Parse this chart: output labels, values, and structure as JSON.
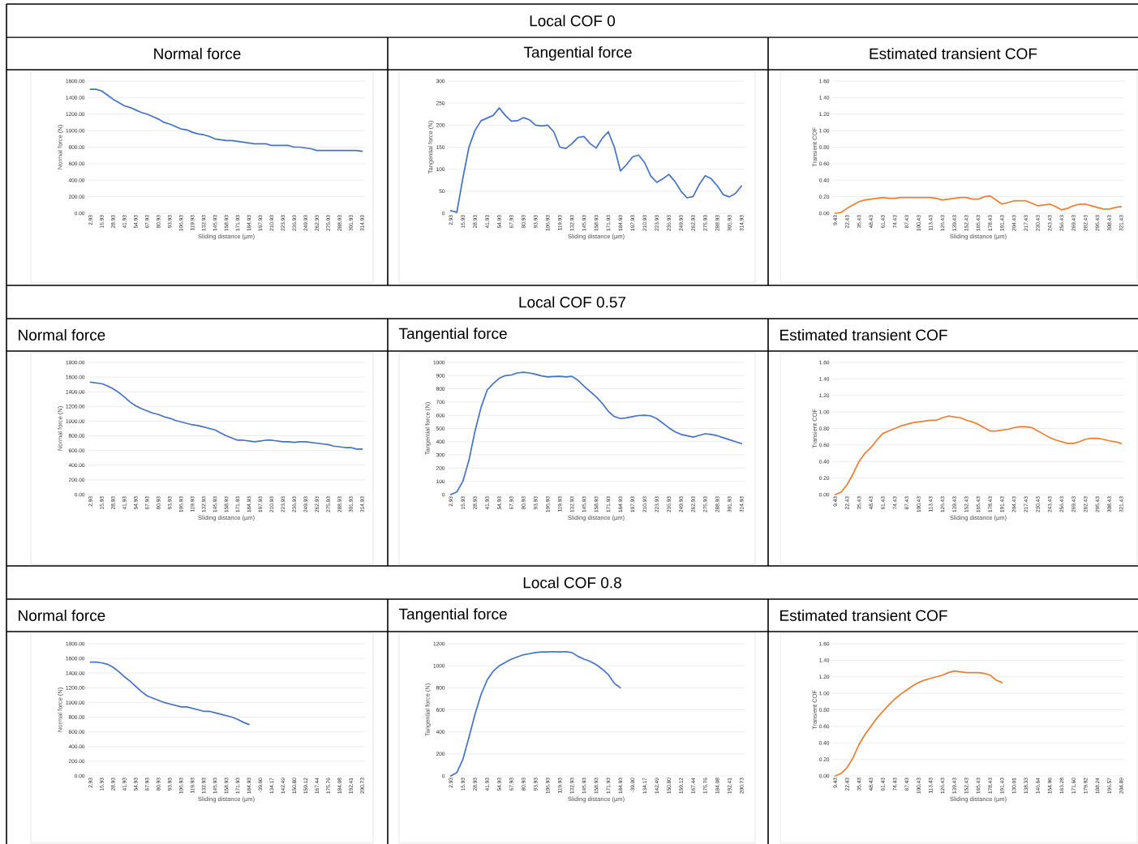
{
  "chart_data": [
    {
      "type": "line",
      "title": "Normal force",
      "annotations": [
        "Local COF 0"
      ],
      "xlabel": "Sliding distance (µm)",
      "ylabel": "Normal force (N)",
      "color": "#4472c4",
      "grid": "y",
      "categories": [
        "2.93",
        null,
        "15.93",
        null,
        "28.93",
        null,
        "41.93",
        null,
        "54.93",
        null,
        "67.93",
        null,
        "80.93",
        null,
        "93.93",
        null,
        "106.93",
        null,
        "119.93",
        null,
        "132.93",
        null,
        "145.93",
        null,
        "158.93",
        null,
        "171.93",
        null,
        "184.93",
        null,
        "197.93",
        null,
        "210.93",
        null,
        "223.93",
        null,
        "236.93",
        null,
        "249.93",
        null,
        "262.93",
        null,
        "275.93",
        null,
        "288.93",
        null,
        "301.93",
        null,
        "314.93"
      ],
      "values": [
        1500,
        1500,
        1480,
        1430,
        1380,
        1340,
        1300,
        1280,
        1250,
        1220,
        1200,
        1170,
        1140,
        1100,
        1080,
        1050,
        1020,
        1010,
        980,
        960,
        950,
        930,
        900,
        890,
        880,
        880,
        870,
        860,
        850,
        840,
        840,
        840,
        820,
        820,
        820,
        820,
        800,
        800,
        790,
        780,
        760,
        760,
        760,
        760,
        760,
        760,
        760,
        760,
        750
      ],
      "ylim": [
        0,
        1600
      ],
      "yticks": [
        {
          "value": 0,
          "label": "0.00"
        },
        {
          "value": 200,
          "label": "200.00"
        },
        {
          "value": 400,
          "label": "400.00"
        },
        {
          "value": 600,
          "label": "600.00"
        },
        {
          "value": 800,
          "label": "800.00"
        },
        {
          "value": 1000,
          "label": "1000.00"
        },
        {
          "value": 1200,
          "label": "1200.00"
        },
        {
          "value": 1400,
          "label": "1400.00"
        },
        {
          "value": 1600,
          "label": "1600.00"
        }
      ]
    },
    {
      "type": "line",
      "title": "Tangential force",
      "xlabel": "Sliding distance (µm)",
      "ylabel": "Tangential force (N)",
      "color": "#4472c4",
      "grid": "y",
      "categories": [
        "2.93",
        null,
        "15.93",
        null,
        "28.93",
        null,
        "41.93",
        null,
        "54.93",
        null,
        "67.93",
        null,
        "80.93",
        null,
        "93.93",
        null,
        "106.93",
        null,
        "119.93",
        null,
        "132.93",
        null,
        "145.93",
        null,
        "158.93",
        null,
        "171.93",
        null,
        "184.93",
        null,
        "197.93",
        null,
        "210.93",
        null,
        "223.93",
        null,
        "236.93",
        null,
        "249.93",
        null,
        "262.93",
        null,
        "275.93",
        null,
        "288.93",
        null,
        "301.93",
        null,
        "314.93"
      ],
      "values": [
        6,
        2,
        80,
        150,
        188,
        210,
        216,
        222,
        239,
        222,
        209,
        210,
        217,
        212,
        200,
        198,
        200,
        185,
        150,
        147,
        158,
        172,
        174,
        158,
        148,
        170,
        185,
        150,
        96,
        110,
        128,
        132,
        115,
        85,
        70,
        78,
        88,
        72,
        50,
        35,
        38,
        65,
        85,
        78,
        62,
        42,
        37,
        45,
        62
      ],
      "ylim": [
        0,
        300
      ],
      "yticks": [
        0,
        50,
        100,
        150,
        200,
        250,
        300
      ]
    },
    {
      "type": "line",
      "title": "Estimated transient COF",
      "xlabel": "Sliding distance (µm)",
      "ylabel": "Transient COF",
      "color": "#ed7d31",
      "grid": "y",
      "categories": [
        "9.43",
        null,
        "22.43",
        null,
        "35.43",
        null,
        "48.43",
        null,
        "61.43",
        null,
        "74.43",
        null,
        "87.43",
        null,
        "100.43",
        null,
        "113.43",
        null,
        "126.43",
        null,
        "139.43",
        null,
        "152.43",
        null,
        "165.43",
        null,
        "178.43",
        null,
        "191.43",
        null,
        "204.43",
        null,
        "217.43",
        null,
        "230.43",
        null,
        "243.43",
        null,
        "256.43",
        null,
        "269.43",
        null,
        "282.43",
        null,
        "295.43",
        null,
        "308.43",
        null,
        "321.43"
      ],
      "values": [
        0,
        0.01,
        0.06,
        0.1,
        0.14,
        0.16,
        0.17,
        0.18,
        0.19,
        0.18,
        0.18,
        0.19,
        0.19,
        0.19,
        0.19,
        0.19,
        0.19,
        0.18,
        0.16,
        0.17,
        0.18,
        0.19,
        0.19,
        0.17,
        0.17,
        0.2,
        0.21,
        0.16,
        0.11,
        0.13,
        0.15,
        0.15,
        0.15,
        0.12,
        0.09,
        0.1,
        0.11,
        0.08,
        0.04,
        0.06,
        0.09,
        0.11,
        0.11,
        0.09,
        0.07,
        0.05,
        0.05,
        0.07,
        0.08
      ],
      "ylim": [
        0,
        1.6
      ],
      "yticks": [
        {
          "value": 0,
          "label": "0.00"
        },
        {
          "value": 0.2,
          "label": "0.20"
        },
        {
          "value": 0.4,
          "label": "0.40"
        },
        {
          "value": 0.6,
          "label": "0.60"
        },
        {
          "value": 0.8,
          "label": "0.80"
        },
        {
          "value": 1.0,
          "label": "1.00"
        },
        {
          "value": 1.2,
          "label": "1.20"
        },
        {
          "value": 1.4,
          "label": "1.40"
        },
        {
          "value": 1.6,
          "label": "1.60"
        }
      ]
    },
    {
      "type": "line",
      "title": "Normal force",
      "annotations": [
        "Local COF 0.57"
      ],
      "xlabel": "Sliding distance (µm)",
      "ylabel": "Normal force (N)",
      "color": "#4472c4",
      "grid": "y",
      "categories": [
        "2.93",
        null,
        "15.93",
        null,
        "28.93",
        null,
        "41.93",
        null,
        "54.93",
        null,
        "67.93",
        null,
        "80.93",
        null,
        "93.93",
        null,
        "106.93",
        null,
        "119.93",
        null,
        "132.93",
        null,
        "145.93",
        null,
        "158.93",
        null,
        "171.93",
        null,
        "184.93",
        null,
        "197.93",
        null,
        "210.93",
        null,
        "223.93",
        null,
        "236.93",
        null,
        "249.93",
        null,
        "262.93",
        null,
        "275.93",
        null,
        "288.93",
        null,
        "301.93",
        null,
        "314.93"
      ],
      "values": [
        1530,
        1520,
        1510,
        1480,
        1440,
        1390,
        1330,
        1260,
        1210,
        1170,
        1140,
        1110,
        1090,
        1060,
        1040,
        1010,
        990,
        970,
        950,
        940,
        920,
        900,
        880,
        840,
        800,
        770,
        740,
        740,
        730,
        720,
        730,
        740,
        740,
        730,
        720,
        720,
        710,
        720,
        720,
        710,
        700,
        690,
        680,
        660,
        650,
        640,
        640,
        620,
        620
      ],
      "ylim": [
        0,
        1800
      ],
      "yticks": [
        {
          "value": 0,
          "label": "0.00"
        },
        {
          "value": 200,
          "label": "200.00"
        },
        {
          "value": 400,
          "label": "400.00"
        },
        {
          "value": 600,
          "label": "600.00"
        },
        {
          "value": 800,
          "label": "800.00"
        },
        {
          "value": 1000,
          "label": "1000.00"
        },
        {
          "value": 1200,
          "label": "1200.00"
        },
        {
          "value": 1400,
          "label": "1400.00"
        },
        {
          "value": 1600,
          "label": "1600.00"
        },
        {
          "value": 1800,
          "label": "1800.00"
        }
      ]
    },
    {
      "type": "line",
      "title": "Tangential force",
      "xlabel": "Sliding distance (µm)",
      "ylabel": "Tangential force (N)",
      "color": "#4472c4",
      "grid": "y",
      "categories": [
        "2.93",
        null,
        "15.93",
        null,
        "28.93",
        null,
        "41.93",
        null,
        "54.93",
        null,
        "67.93",
        null,
        "80.93",
        null,
        "93.93",
        null,
        "106.93",
        null,
        "119.93",
        null,
        "132.93",
        null,
        "145.93",
        null,
        "158.93",
        null,
        "171.93",
        null,
        "184.93",
        null,
        "197.93",
        null,
        "210.93",
        null,
        "223.93",
        null,
        "236.93",
        null,
        "249.93",
        null,
        "262.93",
        null,
        "275.93",
        null,
        "288.93",
        null,
        "301.93",
        null,
        "314.93"
      ],
      "values": [
        0,
        20,
        100,
        260,
        480,
        660,
        790,
        840,
        880,
        900,
        905,
        920,
        925,
        920,
        910,
        898,
        890,
        893,
        895,
        890,
        895,
        865,
        820,
        780,
        740,
        690,
        630,
        590,
        575,
        580,
        590,
        598,
        600,
        595,
        575,
        540,
        505,
        475,
        455,
        445,
        435,
        448,
        460,
        455,
        445,
        430,
        415,
        400,
        385
      ],
      "ylim": [
        0,
        1000
      ],
      "yticks": [
        0,
        100,
        200,
        300,
        400,
        500,
        600,
        700,
        800,
        900,
        1000
      ]
    },
    {
      "type": "line",
      "title": "Estimated transient COF",
      "xlabel": "Sliding distance (µm)",
      "ylabel": "Transient COF",
      "color": "#ed7d31",
      "grid": "y",
      "categories": [
        "9.43",
        null,
        "22.43",
        null,
        "35.43",
        null,
        "48.43",
        null,
        "61.43",
        null,
        "74.43",
        null,
        "87.43",
        null,
        "100.43",
        null,
        "113.43",
        null,
        "126.43",
        null,
        "139.43",
        null,
        "152.43",
        null,
        "165.43",
        null,
        "178.43",
        null,
        "191.43",
        null,
        "204.43",
        null,
        "217.43",
        null,
        "230.43",
        null,
        "243.43",
        null,
        "256.43",
        null,
        "269.43",
        null,
        "282.43",
        null,
        "295.43",
        null,
        "308.43",
        null,
        "321.43"
      ],
      "values": [
        0,
        0.03,
        0.12,
        0.25,
        0.4,
        0.5,
        0.57,
        0.66,
        0.74,
        0.77,
        0.8,
        0.83,
        0.85,
        0.87,
        0.88,
        0.89,
        0.9,
        0.9,
        0.93,
        0.95,
        0.94,
        0.93,
        0.9,
        0.88,
        0.85,
        0.81,
        0.77,
        0.77,
        0.78,
        0.79,
        0.81,
        0.82,
        0.82,
        0.81,
        0.77,
        0.73,
        0.69,
        0.66,
        0.64,
        0.62,
        0.62,
        0.64,
        0.67,
        0.68,
        0.68,
        0.67,
        0.65,
        0.64,
        0.62
      ],
      "ylim": [
        0,
        1.6
      ],
      "yticks": [
        {
          "value": 0,
          "label": "0.00"
        },
        {
          "value": 0.2,
          "label": "0.20"
        },
        {
          "value": 0.4,
          "label": "0.40"
        },
        {
          "value": 0.6,
          "label": "0.60"
        },
        {
          "value": 0.8,
          "label": "0.80"
        },
        {
          "value": 1.0,
          "label": "1.00"
        },
        {
          "value": 1.2,
          "label": "1.20"
        },
        {
          "value": 1.4,
          "label": "1.40"
        },
        {
          "value": 1.6,
          "label": "1.60"
        }
      ]
    },
    {
      "type": "line",
      "title": "Normal force",
      "annotations": [
        "Local COF 0.8"
      ],
      "xlabel": "Sliding distance (µm)",
      "ylabel": "Normal force (N)",
      "color": "#4472c4",
      "grid": "y",
      "categories": [
        "2.93",
        null,
        "15.93",
        null,
        "28.93",
        null,
        "41.93",
        null,
        "54.93",
        null,
        "67.93",
        null,
        "80.93",
        null,
        "93.93",
        null,
        "106.93",
        null,
        "119.93",
        null,
        "132.93",
        null,
        "145.93",
        null,
        "158.93",
        null,
        "171.93",
        null,
        "184.93",
        null,
        "-39.00",
        null,
        "134.17",
        null,
        "142.49",
        null,
        "150.80",
        null,
        "159.12",
        null,
        "167.44",
        null,
        "175.76",
        null,
        "184.08",
        null,
        "192.41",
        null,
        "200.73"
      ],
      "values": [
        1550,
        1550,
        1540,
        1520,
        1480,
        1420,
        1350,
        1290,
        1220,
        1150,
        1090,
        1060,
        1030,
        1000,
        980,
        960,
        940,
        940,
        920,
        900,
        880,
        880,
        860,
        840,
        820,
        800,
        770,
        730,
        700,
        null,
        null,
        null,
        null,
        null,
        null,
        null,
        null,
        null,
        null,
        null,
        null,
        null,
        null,
        null,
        null,
        null,
        null,
        null,
        null
      ],
      "ylim": [
        0,
        1800
      ],
      "yticks": [
        {
          "value": 0,
          "label": "0.00"
        },
        {
          "value": 200,
          "label": "200.00"
        },
        {
          "value": 400,
          "label": "400.00"
        },
        {
          "value": 600,
          "label": "600.00"
        },
        {
          "value": 800,
          "label": "800.00"
        },
        {
          "value": 1000,
          "label": "1000.00"
        },
        {
          "value": 1200,
          "label": "1200.00"
        },
        {
          "value": 1400,
          "label": "1400.00"
        },
        {
          "value": 1600,
          "label": "1600.00"
        },
        {
          "value": 1800,
          "label": "1800.00"
        }
      ]
    },
    {
      "type": "line",
      "title": "Tangential force",
      "xlabel": "Sliding distance (µm)",
      "ylabel": "Tangential force (N)",
      "color": "#4472c4",
      "grid": "y",
      "categories": [
        "2.93",
        null,
        "15.93",
        null,
        "28.93",
        null,
        "41.93",
        null,
        "54.93",
        null,
        "67.93",
        null,
        "80.93",
        null,
        "93.93",
        null,
        "106.93",
        null,
        "119.93",
        null,
        "132.93",
        null,
        "145.93",
        null,
        "158.93",
        null,
        "171.93",
        null,
        "184.93",
        null,
        "-39.00",
        null,
        "134.17",
        null,
        "142.49",
        null,
        "150.80",
        null,
        "159.12",
        null,
        "167.44",
        null,
        "175.76",
        null,
        "184.08",
        null,
        "192.41",
        null,
        "200.73"
      ],
      "values": [
        0,
        30,
        150,
        350,
        560,
        740,
        870,
        950,
        1000,
        1030,
        1060,
        1080,
        1100,
        1110,
        1120,
        1125,
        1125,
        1128,
        1125,
        1128,
        1120,
        1085,
        1060,
        1040,
        1010,
        970,
        920,
        840,
        800,
        null,
        null,
        null,
        null,
        null,
        null,
        null,
        null,
        null,
        null,
        null,
        null,
        null,
        null,
        null,
        null,
        null,
        null,
        null,
        null
      ],
      "ylim": [
        0,
        1200
      ],
      "yticks": [
        0,
        200,
        400,
        600,
        800,
        1000,
        1200
      ]
    },
    {
      "type": "line",
      "title": "Estimated transient COF",
      "xlabel": "Sliding distance (µm)",
      "ylabel": "Transient COF",
      "color": "#ed7d31",
      "grid": "y",
      "categories": [
        "9.43",
        null,
        "22.43",
        null,
        "35.43",
        null,
        "48.43",
        null,
        "61.43",
        null,
        "74.43",
        null,
        "87.43",
        null,
        "100.43",
        null,
        "113.43",
        null,
        "126.43",
        null,
        "139.43",
        null,
        "152.43",
        null,
        "165.43",
        null,
        "178.43",
        null,
        "191.43",
        null,
        "130.01",
        null,
        "138.33",
        null,
        "146.64",
        null,
        "154.96",
        null,
        "163.28",
        null,
        "171.60",
        null,
        "179.92",
        null,
        "188.24",
        null,
        "196.57",
        null,
        "204.89"
      ],
      "values": [
        0,
        0.03,
        0.1,
        0.22,
        0.38,
        0.5,
        0.6,
        0.7,
        0.78,
        0.86,
        0.93,
        0.99,
        1.04,
        1.09,
        1.13,
        1.16,
        1.18,
        1.2,
        1.22,
        1.25,
        1.27,
        1.26,
        1.25,
        1.25,
        1.25,
        1.24,
        1.22,
        1.16,
        1.13,
        null,
        null,
        null,
        null,
        null,
        null,
        null,
        null,
        null,
        null,
        null,
        null,
        null,
        null,
        null,
        null,
        null,
        null,
        null,
        null
      ],
      "ylim": [
        0,
        1.6
      ],
      "yticks": [
        {
          "value": 0,
          "label": "0.00"
        },
        {
          "value": 0.2,
          "label": "0.20"
        },
        {
          "value": 0.4,
          "label": "0.40"
        },
        {
          "value": 0.6,
          "label": "0.60"
        },
        {
          "value": 0.8,
          "label": "0.80"
        },
        {
          "value": 1.0,
          "label": "1.00"
        },
        {
          "value": 1.2,
          "label": "1.20"
        },
        {
          "value": 1.4,
          "label": "1.40"
        },
        {
          "value": 1.6,
          "label": "1.60"
        }
      ]
    }
  ]
}
